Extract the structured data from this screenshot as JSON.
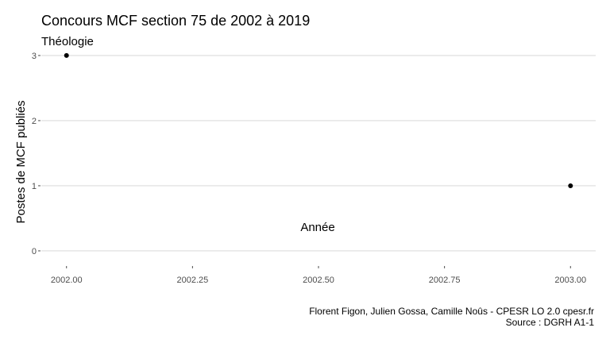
{
  "chart_data": {
    "type": "scatter",
    "title": "Concours MCF section 75 de 2002 à 2019",
    "subtitle": "Théologie",
    "xlabel": "Année",
    "ylabel": "Postes de MCF publiés",
    "xlim": [
      1.9983,
      2003.0532
    ],
    "x_ticks": [
      2002.0,
      2002.25,
      2002.5,
      2002.75,
      2003.0
    ],
    "x_tick_labels": [
      "2002.00",
      "2002.25",
      "2002.50",
      "2002.75",
      "2003.00"
    ],
    "ylim": [
      0,
      3
    ],
    "y_ticks": [
      0,
      1,
      2,
      3
    ],
    "y_tick_labels": [
      "0",
      "1",
      "2",
      "3"
    ],
    "points": [
      {
        "x": 2002,
        "y": 3
      },
      {
        "x": 2003,
        "y": 1
      }
    ],
    "grid": "horizontal-major",
    "point_color": "#000000",
    "caption": [
      "Florent Figon, Julien Gossa, Camille Noûs - CPESR LO 2.0 cpesr.fr",
      "Source : DGRH A1-1"
    ]
  }
}
